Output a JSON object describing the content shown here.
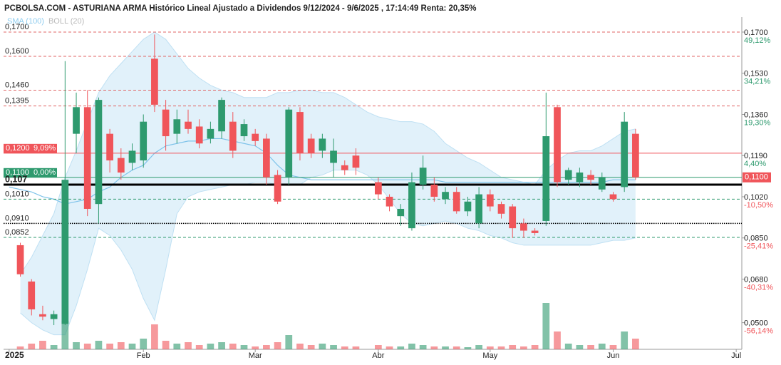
{
  "chart_data": {
    "type": "candlestick",
    "title": "PCBOLSA.COM - ASTURIANA ARMA Histórico Lineal Ajustado a Dividendos 9/12/2024 - 9/6/2025 , 17:14:49 Renta: 20,35%",
    "up_color": "#2e9a6e",
    "down_color": "#f0555a",
    "categories": [
      "2025",
      null,
      null,
      null,
      null,
      null,
      null,
      null,
      null,
      null,
      null,
      null,
      "Feb",
      null,
      null,
      null,
      null,
      null,
      null,
      null,
      null,
      null,
      "Mar",
      null,
      null,
      null,
      null,
      null,
      null,
      null,
      null,
      null,
      null,
      "Abr",
      null,
      null,
      null,
      null,
      null,
      null,
      null,
      null,
      null,
      "May",
      null,
      null,
      null,
      null,
      null,
      null,
      null,
      null,
      null,
      null,
      "Jun",
      null,
      null,
      null,
      null,
      null,
      null,
      null,
      null,
      null,
      null,
      "Jul"
    ],
    "open": [
      null,
      0.082,
      0.067,
      0.0535,
      0.0515,
      0.0495,
      0.128,
      0.139,
      0.099,
      0.128,
      0.118,
      0.116,
      0.117,
      0.159,
      0.138,
      0.128,
      0.133,
      0.131,
      0.126,
      0.129,
      0.133,
      0.127,
      0.128,
      0.126,
      0.111,
      0.11,
      0.137,
      0.126,
      0.121,
      0.116,
      0.115,
      0.119,
      null,
      0.108,
      0.102,
      0.094,
      0.089,
      0.107,
      0.107,
      0.101,
      0.104,
      0.096,
      0.091,
      0.103,
      0.099,
      0.098,
      0.091,
      0.088,
      0.092,
      0.139,
      0.109,
      0.108,
      0.111,
      0.105,
      0.103,
      0.106,
      0.128,
      null,
      null,
      null,
      null,
      null,
      null,
      null,
      null,
      null
    ],
    "high": [
      null,
      0.083,
      0.068,
      0.057,
      0.055,
      0.158,
      0.145,
      0.146,
      0.143,
      0.13,
      0.122,
      0.124,
      0.136,
      0.169,
      0.142,
      0.138,
      0.138,
      0.134,
      0.133,
      0.143,
      0.137,
      0.134,
      0.13,
      0.128,
      0.113,
      0.139,
      0.139,
      0.128,
      0.128,
      0.126,
      0.117,
      0.122,
      null,
      0.11,
      0.103,
      0.099,
      0.112,
      0.119,
      0.11,
      0.106,
      0.106,
      0.102,
      0.106,
      0.105,
      0.1,
      0.099,
      0.093,
      0.089,
      0.145,
      0.14,
      0.114,
      0.114,
      0.113,
      0.112,
      0.104,
      0.137,
      0.13,
      null,
      null,
      null,
      null,
      null,
      null,
      null,
      null,
      null
    ],
    "low": [
      null,
      0.069,
      0.053,
      0.051,
      0.049,
      0.049,
      0.12,
      0.094,
      0.091,
      0.112,
      0.109,
      0.113,
      0.114,
      0.137,
      0.121,
      0.124,
      0.128,
      0.122,
      0.124,
      0.126,
      0.118,
      0.125,
      0.123,
      0.107,
      0.099,
      0.107,
      0.117,
      0.118,
      0.118,
      0.11,
      0.111,
      0.111,
      null,
      0.101,
      0.096,
      0.09,
      0.088,
      0.105,
      0.1,
      0.099,
      0.095,
      0.094,
      0.089,
      0.096,
      0.093,
      0.085,
      0.085,
      0.086,
      0.09,
      0.106,
      0.107,
      0.106,
      0.107,
      0.104,
      0.1,
      0.104,
      0.109,
      null,
      null,
      null,
      null,
      null,
      null,
      null,
      null,
      null
    ],
    "close": [
      null,
      0.07,
      0.0555,
      0.0525,
      0.0535,
      0.109,
      0.139,
      0.097,
      0.142,
      0.117,
      0.112,
      0.121,
      0.133,
      0.14,
      0.127,
      0.134,
      0.13,
      0.124,
      0.13,
      0.142,
      0.121,
      0.132,
      0.125,
      0.11,
      0.1,
      0.138,
      0.12,
      0.12,
      0.126,
      0.121,
      0.113,
      0.114,
      null,
      0.103,
      0.098,
      0.097,
      0.108,
      0.114,
      0.102,
      0.104,
      0.096,
      0.1,
      0.103,
      0.098,
      0.095,
      0.089,
      0.088,
      0.087,
      0.127,
      0.108,
      0.113,
      0.112,
      0.109,
      0.11,
      0.101,
      0.133,
      0.11,
      null,
      null,
      null,
      null,
      null,
      null,
      null,
      null,
      null
    ],
    "volume": [
      null,
      4,
      8,
      12,
      6,
      40,
      10,
      8,
      12,
      8,
      10,
      8,
      15,
      35,
      12,
      8,
      10,
      6,
      8,
      10,
      8,
      6,
      4,
      6,
      10,
      20,
      8,
      6,
      8,
      6,
      4,
      4,
      null,
      6,
      4,
      4,
      8,
      6,
      4,
      4,
      4,
      3,
      6,
      4,
      4,
      6,
      4,
      6,
      65,
      25,
      8,
      6,
      6,
      8,
      6,
      25,
      15,
      null,
      null,
      null,
      null,
      null,
      null,
      null,
      null,
      null
    ],
    "series": [
      {
        "name": "SMA (100)",
        "color": "#7ec3ea",
        "values": [
          0.106,
          0.105,
          0.104,
          0.102,
          0.101,
          0.099,
          0.1,
          0.101,
          0.104,
          0.106,
          0.11,
          0.113,
          0.115,
          0.12,
          0.123,
          0.124,
          0.125,
          0.125,
          0.126,
          0.126,
          0.125,
          0.124,
          0.123,
          0.12,
          0.115,
          0.111,
          0.11,
          0.109,
          0.109,
          0.109,
          0.109,
          0.109,
          0.109,
          0.109,
          0.109,
          0.109,
          0.109,
          0.109,
          0.109,
          0.108,
          0.108,
          0.108,
          0.108,
          0.108,
          0.108,
          0.108,
          0.108,
          0.108,
          0.108,
          0.108,
          0.108,
          0.108,
          0.108,
          0.108,
          0.109,
          0.109,
          0.109,
          null,
          null,
          null,
          null,
          null,
          null,
          null,
          null,
          null
        ]
      },
      {
        "name": "BOLL (20)",
        "color": "#b9b9b9",
        "fill": "#d4ebf8",
        "upper": [
          null,
          0.07,
          0.077,
          0.086,
          0.095,
          0.11,
          0.121,
          0.133,
          0.145,
          0.152,
          0.157,
          0.162,
          0.167,
          0.17,
          0.167,
          0.161,
          0.155,
          0.151,
          0.148,
          0.146,
          0.145,
          0.143,
          0.143,
          0.143,
          0.145,
          0.145,
          0.146,
          0.146,
          0.145,
          0.145,
          0.143,
          0.14,
          0.137,
          0.135,
          0.134,
          0.133,
          0.133,
          0.132,
          0.129,
          0.124,
          0.121,
          0.118,
          0.116,
          0.113,
          0.11,
          0.109,
          0.108,
          0.107,
          0.113,
          0.117,
          0.12,
          0.121,
          0.121,
          0.123,
          0.126,
          0.129,
          0.13,
          null,
          null,
          null,
          null,
          null,
          null,
          null,
          null,
          null
        ],
        "lower": [
          null,
          0.054,
          0.05,
          0.047,
          0.045,
          0.045,
          0.057,
          0.072,
          0.089,
          0.086,
          0.08,
          0.072,
          0.06,
          0.051,
          0.072,
          0.095,
          0.102,
          0.104,
          0.105,
          0.106,
          0.107,
          0.107,
          0.108,
          0.108,
          0.107,
          0.107,
          0.107,
          0.11,
          0.111,
          0.113,
          0.113,
          0.113,
          0.111,
          0.107,
          0.101,
          0.095,
          0.091,
          0.09,
          0.091,
          0.092,
          0.091,
          0.089,
          0.088,
          0.086,
          0.085,
          0.083,
          0.082,
          0.082,
          0.082,
          0.082,
          0.082,
          0.082,
          0.082,
          0.083,
          0.084,
          0.084,
          0.085,
          null,
          null,
          null,
          null,
          null,
          null,
          null,
          null,
          null
        ]
      }
    ],
    "ylim": [
      0.039,
      0.175
    ],
    "yticks": [
      {
        "value": 0.17,
        "label": "0,1700"
      },
      {
        "value": 0.153,
        "label": "0,1530"
      },
      {
        "value": 0.136,
        "label": "0,1360"
      },
      {
        "value": 0.119,
        "label": "0,1190"
      },
      {
        "value": 0.102,
        "label": "0,1020"
      },
      {
        "value": 0.085,
        "label": "0,0850"
      },
      {
        "value": 0.068,
        "label": "0,0680"
      },
      {
        "value": 0.05,
        "label": "0,0500"
      }
    ],
    "ytick_notes": [
      {
        "label": "49,12%",
        "color": "#2e9a6e"
      },
      {
        "label": "34,21%",
        "color": "#2e9a6e"
      },
      {
        "label": "19,30%",
        "color": "#2e9a6e"
      },
      {
        "label": "4,40%",
        "color": "#2e9a6e"
      },
      {
        "label": "-10,50%",
        "color": "#f0555a"
      },
      {
        "label": "-25,41%",
        "color": "#f0555a"
      },
      {
        "label": "-40,31%",
        "color": "#f0555a"
      },
      {
        "label": "-56,14%",
        "color": "#f0555a"
      }
    ],
    "levels": [
      {
        "value": 0.17,
        "label": "0,1700",
        "style": "dashed",
        "color": "#e06666"
      },
      {
        "value": 0.16,
        "label": "0,1600",
        "style": "dashed",
        "color": "#e06666"
      },
      {
        "value": 0.146,
        "label": "0,1460",
        "style": "dashed",
        "color": "#e06666"
      },
      {
        "value": 0.1395,
        "label": "0,1395",
        "style": "dashed",
        "color": "#e06666"
      },
      {
        "value": 0.12,
        "label": "0,1200",
        "tag": "9,09%",
        "style": "solid",
        "color": "#f0555a"
      },
      {
        "value": 0.11,
        "label": "0,1100",
        "tag": "0,00%",
        "style": "solid",
        "color": "#2e9a6e"
      },
      {
        "value": 0.107,
        "label": "0,107",
        "style": "thick",
        "color": "#000000"
      },
      {
        "value": 0.101,
        "label": "0,1010",
        "style": "dashed",
        "color": "#2e9a6e"
      },
      {
        "value": 0.091,
        "label": "0,0910",
        "style": "dotted",
        "color": "#000000"
      },
      {
        "value": 0.0852,
        "label": "0,0852",
        "style": "dashed",
        "color": "#2e9a6e"
      }
    ],
    "last": {
      "value": 0.11,
      "label": "0,1100",
      "color": "#f0555a"
    }
  }
}
